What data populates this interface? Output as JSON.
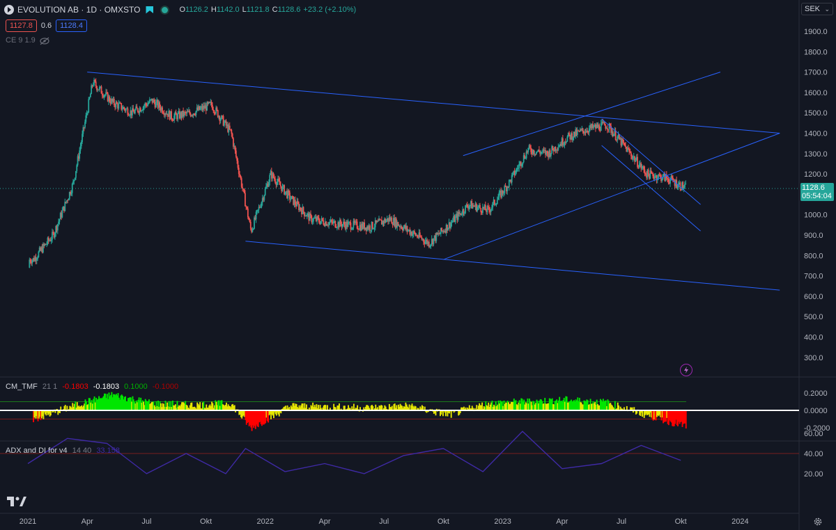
{
  "header": {
    "symbol": "EVOLUTION AB · 1D · OMXSTO",
    "open_label": "O",
    "open": "1126.2",
    "high_label": "H",
    "high": "1142.0",
    "low_label": "L",
    "low": "1121.8",
    "close_label": "C",
    "close": "1128.6",
    "change": "+23.2 (+2.10%)"
  },
  "quote": {
    "bid": "1127.8",
    "spread": "0.6",
    "ask": "1128.4"
  },
  "indicator_ce": {
    "label": "CE 9 1.9"
  },
  "currency": {
    "label": "SEK"
  },
  "price_axis": {
    "ticks": [
      "1900.0",
      "1800.0",
      "1700.0",
      "1600.0",
      "1500.0",
      "1400.0",
      "1300.0",
      "1200.0",
      "1100.0",
      "1000.0",
      "900.0",
      "800.0",
      "700.0",
      "600.0",
      "500.0",
      "400.0",
      "300.0"
    ],
    "last_price": "1128.6",
    "countdown": "05:54:04"
  },
  "time_axis": {
    "labels": [
      "2021",
      "Apr",
      "Jul",
      "Okt",
      "2022",
      "Apr",
      "Jul",
      "Okt",
      "2023",
      "Apr",
      "Jul",
      "Okt",
      "2024"
    ]
  },
  "tmf_pane": {
    "name": "CM_TMF",
    "params": "21 1",
    "values": [
      "-0.1803",
      "-0.1803",
      "0.1000",
      "-0.1000"
    ],
    "ticks": [
      "0.2000",
      "0.0000",
      "-0.2000"
    ]
  },
  "adx_pane": {
    "name": "ADX and DI for v4",
    "params": "14 40",
    "value": "33.158",
    "ticks": [
      "60.00",
      "40.00",
      "20.00"
    ]
  },
  "colors": {
    "background": "#131722",
    "up": "#26a69a",
    "down": "#ef5350",
    "trendline": "#2962ff",
    "tmf_green": "#00e600",
    "tmf_yellow": "#e5e500",
    "tmf_red": "#ff0000",
    "adx_line": "#3f2aa6"
  },
  "icons": [
    "logo-arrow-icon",
    "flag-icon",
    "status-dot-icon",
    "eye-off-icon",
    "lightning-icon",
    "settings-icon",
    "tradingview-logo-icon",
    "chevron-down-icon"
  ],
  "chart_data": [
    {
      "type": "candlestick",
      "title": "EVOLUTION AB · 1D · OMXSTO",
      "ylabel": "SEK",
      "ylim": [
        200,
        1950
      ],
      "x_range": [
        "2021-01",
        "2024-03"
      ],
      "series": [
        {
          "name": "EVOLUTION AB",
          "x": [
            "2021-01",
            "2021-02",
            "2021-03",
            "2021-04",
            "2021-05",
            "2021-06",
            "2021-07",
            "2021-08",
            "2021-09",
            "2021-10",
            "2021-11",
            "2021-12",
            "2022-01",
            "2022-02",
            "2022-03",
            "2022-04",
            "2022-05",
            "2022-06",
            "2022-07",
            "2022-08",
            "2022-09",
            "2022-10",
            "2022-11",
            "2022-12",
            "2023-01",
            "2023-02",
            "2023-03",
            "2023-04",
            "2023-05",
            "2023-06",
            "2023-07",
            "2023-08",
            "2023-09",
            "2023-10"
          ],
          "y": [
            780,
            900,
            1150,
            1650,
            1550,
            1500,
            1560,
            1480,
            1500,
            1540,
            1400,
            920,
            1200,
            1080,
            980,
            960,
            950,
            940,
            980,
            920,
            860,
            950,
            1050,
            1020,
            1150,
            1320,
            1300,
            1380,
            1420,
            1440,
            1320,
            1200,
            1180,
            1128.6
          ]
        }
      ],
      "trendlines": [
        {
          "name": "upper channel",
          "from": [
            "2021-04",
            1700
          ],
          "to": [
            "2024-03",
            1400
          ]
        },
        {
          "name": "lower channel",
          "from": [
            "2021-12",
            870
          ],
          "to": [
            "2024-03",
            630
          ]
        },
        {
          "name": "rising support",
          "from": [
            "2022-10",
            780
          ],
          "to": [
            "2024-03",
            1400
          ]
        },
        {
          "name": "rising resistance",
          "from": [
            "2022-11",
            1290
          ],
          "to": [
            "2023-12",
            1700
          ]
        },
        {
          "name": "falling channel top",
          "from": [
            "2023-06",
            1470
          ],
          "to": [
            "2023-11",
            1050
          ]
        },
        {
          "name": "falling channel bottom",
          "from": [
            "2023-06",
            1340
          ],
          "to": [
            "2023-11",
            920
          ]
        }
      ],
      "last": 1128.6
    },
    {
      "type": "area",
      "title": "CM_TMF 21 1",
      "ylim": [
        -0.3,
        0.3
      ],
      "levels": [
        0.1,
        -0.1
      ],
      "x": [
        "2021-01",
        "2021-03",
        "2021-05",
        "2021-07",
        "2021-09",
        "2021-11",
        "2021-12",
        "2022-02",
        "2022-04",
        "2022-06",
        "2022-08",
        "2022-10",
        "2022-12",
        "2023-02",
        "2023-04",
        "2023-06",
        "2023-08",
        "2023-10"
      ],
      "values": [
        -0.1,
        0.05,
        0.18,
        0.08,
        0.06,
        0.08,
        -0.2,
        0.05,
        0.04,
        0.03,
        0.05,
        -0.05,
        0.08,
        0.1,
        0.12,
        0.09,
        -0.05,
        -0.1803
      ]
    },
    {
      "type": "line",
      "title": "ADX and DI for v4 14 40",
      "ylim": [
        5,
        70
      ],
      "levels": [
        40
      ],
      "x": [
        "2021-01",
        "2021-03",
        "2021-05",
        "2021-07",
        "2021-09",
        "2021-11",
        "2021-12",
        "2022-02",
        "2022-04",
        "2022-06",
        "2022-08",
        "2022-10",
        "2022-12",
        "2023-02",
        "2023-04",
        "2023-06",
        "2023-08",
        "2023-10"
      ],
      "values": [
        30,
        55,
        50,
        20,
        40,
        20,
        45,
        22,
        30,
        20,
        38,
        45,
        22,
        62,
        25,
        30,
        48,
        33.158
      ]
    }
  ]
}
